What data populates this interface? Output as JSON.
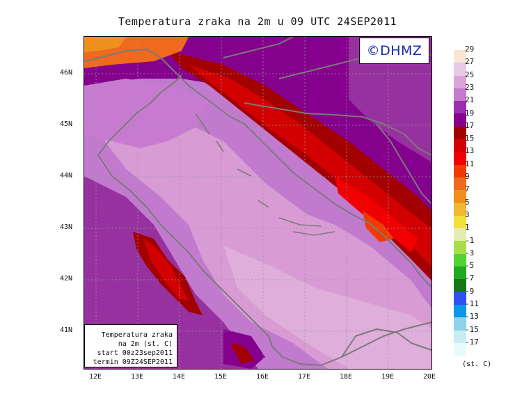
{
  "title": "Temperatura zraka na 2m u 09 UTC 24SEP2011",
  "logo": "©DHMZ",
  "info": {
    "line1": "Temperatura zraka",
    "line2": "na 2m (st. C)",
    "line3": "start 00z23sep2011",
    "line4": "termin 09Z24SEP2011"
  },
  "lat_labels": [
    "46N",
    "45N",
    "44N",
    "43N",
    "42N",
    "41N"
  ],
  "lon_labels": [
    "12E",
    "13E",
    "14E",
    "15E",
    "16E",
    "17E",
    "18E",
    "19E",
    "20E"
  ],
  "legend": {
    "labels": [
      "29",
      "27",
      "25",
      "23",
      "21",
      "19",
      "17",
      "15",
      "13",
      "11",
      "9",
      "7",
      "5",
      "3",
      "1",
      "-1",
      "-3",
      "-5",
      "-7",
      "-9",
      "-11",
      "-13",
      "-15",
      "-17"
    ],
    "colors": [
      "#fbe6d6",
      "#e8c9e6",
      "#dba5d9",
      "#c77bd0",
      "#9a2fb0",
      "#85008c",
      "#a30000",
      "#d20000",
      "#f00000",
      "#f23a00",
      "#f06a1e",
      "#f0901c",
      "#f0b833",
      "#f2df3a",
      "#e2eeb0",
      "#a6e046",
      "#52d234",
      "#20aa20",
      "#147814",
      "#2e52f0",
      "#0a98e8",
      "#8dd4e8",
      "#c8ecf2",
      "#e8fafc"
    ],
    "unit": "(st. C)"
  },
  "colors": {
    "sea_warm": "#d89bd4",
    "sea_mid": "#c27ace",
    "land_violet": "#97319f",
    "land_dark": "#7c0a78",
    "red_high": "#c80000",
    "red_mid": "#e40000",
    "orange": "#f06a1e",
    "coast": "#7a7a7a"
  }
}
